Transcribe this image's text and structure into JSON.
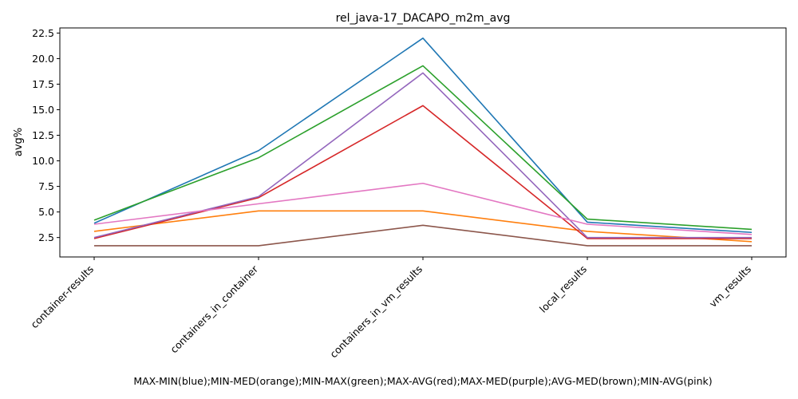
{
  "chart_data": {
    "type": "line",
    "title": "rel_java-17_DACAPO_m2m_avg",
    "xlabel": "MAX-MIN(blue);MIN-MED(orange);MIN-MAX(green);MAX-AVG(red);MAX-MED(purple);AVG-MED(brown);MIN-AVG(pink)",
    "ylabel": "avg%",
    "categories": [
      "container-results",
      "containers_in_container",
      "containers_in_vm_results",
      "local_results",
      "vm_results"
    ],
    "ylim": [
      0.6,
      23.0
    ],
    "yticks": [
      "2.5",
      "5.0",
      "7.5",
      "10.0",
      "12.5",
      "15.0",
      "17.5",
      "20.0",
      "22.5"
    ],
    "grid": false,
    "series": [
      {
        "color": "#1f77b4",
        "values": [
          3.9,
          11.0,
          22.0,
          4.0,
          3.0
        ]
      },
      {
        "color": "#ff7f0e",
        "values": [
          3.1,
          5.1,
          5.1,
          3.1,
          2.1
        ]
      },
      {
        "color": "#2ca02c",
        "values": [
          4.2,
          10.3,
          19.3,
          4.3,
          3.3
        ]
      },
      {
        "color": "#d62728",
        "values": [
          2.4,
          6.4,
          15.4,
          2.4,
          2.4
        ]
      },
      {
        "color": "#9467bd",
        "values": [
          2.5,
          6.5,
          18.6,
          2.5,
          2.5
        ]
      },
      {
        "color": "#8c564b",
        "values": [
          1.7,
          1.7,
          3.7,
          1.7,
          1.7
        ]
      },
      {
        "color": "#e377c2",
        "values": [
          3.8,
          5.8,
          7.8,
          3.8,
          2.8
        ]
      }
    ]
  }
}
